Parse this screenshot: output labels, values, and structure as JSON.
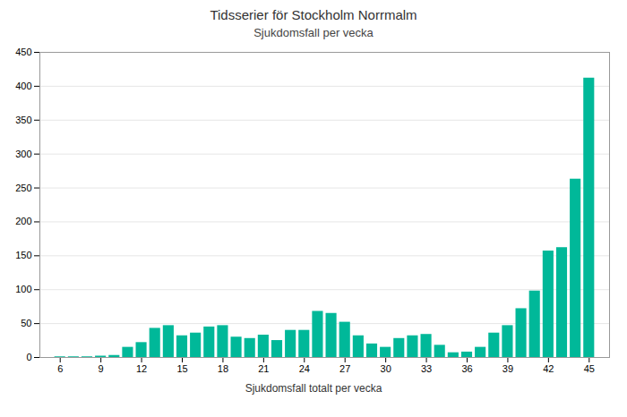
{
  "chart_data": {
    "type": "bar",
    "title": "Tidsserier för Stockholm Norrmalm",
    "subtitle": "Sjukdomsfall per vecka",
    "xlabel": "Sjukdomsfall totalt per vecka",
    "x": [
      6,
      7,
      8,
      9,
      10,
      11,
      12,
      13,
      14,
      15,
      16,
      17,
      18,
      19,
      20,
      21,
      22,
      23,
      24,
      25,
      26,
      27,
      28,
      29,
      30,
      31,
      32,
      33,
      34,
      35,
      36,
      37,
      38,
      39,
      40,
      41,
      42,
      43,
      44,
      45
    ],
    "values": [
      1,
      1,
      1,
      2,
      3,
      15,
      22,
      43,
      47,
      32,
      36,
      45,
      47,
      30,
      28,
      33,
      25,
      40,
      40,
      68,
      65,
      52,
      32,
      20,
      15,
      28,
      32,
      34,
      18,
      7,
      8,
      15,
      36,
      47,
      72,
      98,
      157,
      162,
      263,
      412
    ],
    "color": "#00b899",
    "xlim": [
      4.5,
      46.5
    ],
    "xticks": [
      6,
      9,
      12,
      15,
      18,
      21,
      24,
      27,
      30,
      33,
      36,
      39,
      42,
      45
    ],
    "ylim": [
      0,
      450
    ],
    "yticks": [
      0,
      50,
      100,
      150,
      200,
      250,
      300,
      350,
      400,
      450
    ],
    "grid": true
  }
}
